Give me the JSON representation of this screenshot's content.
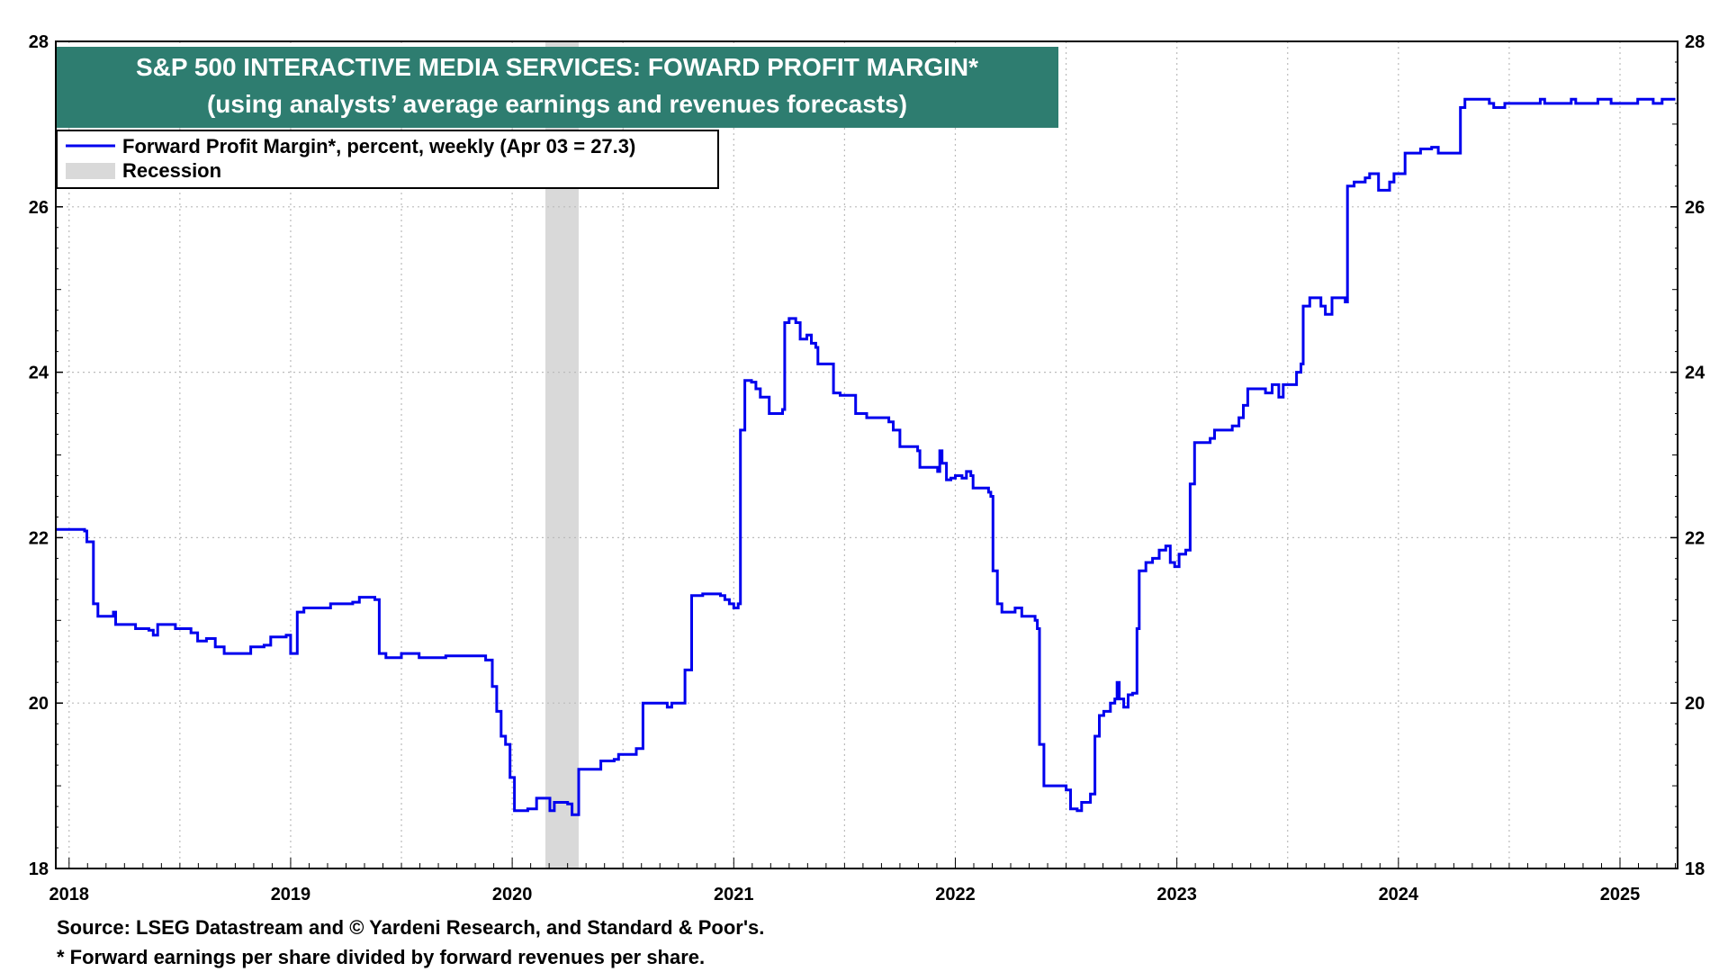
{
  "chart_data": {
    "type": "line",
    "title": "S&P 500 INTERACTIVE MEDIA SERVICES: FOWARD PROFIT MARGIN*",
    "subtitle": "(using analysts’ average earnings and revenues forecasts)",
    "ylim": [
      18,
      28
    ],
    "yticks": [
      18,
      20,
      22,
      24,
      26,
      28
    ],
    "y_tick_labels": [
      "18",
      "20",
      "22",
      "24",
      "26",
      "28"
    ],
    "xlim": [
      2017.94,
      2025.26
    ],
    "year_ticks": [
      2018,
      2019,
      2020,
      2021,
      2022,
      2023,
      2024,
      2025
    ],
    "x_tick_labels": [
      {
        "x": 2018.0,
        "label": "2018"
      },
      {
        "x": 2019.0,
        "label": "2019"
      },
      {
        "x": 2020.0,
        "label": "2020"
      },
      {
        "x": 2021.0,
        "label": "2021"
      },
      {
        "x": 2022.0,
        "label": "2022"
      },
      {
        "x": 2023.0,
        "label": "2023"
      },
      {
        "x": 2024.0,
        "label": "2024"
      },
      {
        "x": 2025.0,
        "label": "2025"
      }
    ],
    "grid": true,
    "legend_position": "top-left",
    "legend": [
      {
        "name": "Forward Profit Margin*, percent, weekly (Apr 03 = 27.3)",
        "color": "#0000ee",
        "kind": "line"
      },
      {
        "name": "Recession",
        "color": "#d9d9d9",
        "kind": "band"
      }
    ],
    "recession_bands": [
      [
        2020.15,
        2020.3
      ]
    ],
    "series": [
      {
        "name": "Forward Profit Margin",
        "color": "#0000ee",
        "points": [
          [
            2017.94,
            22.1
          ],
          [
            2018.03,
            22.1
          ],
          [
            2018.07,
            22.08
          ],
          [
            2018.08,
            21.95
          ],
          [
            2018.1,
            21.95
          ],
          [
            2018.11,
            21.2
          ],
          [
            2018.13,
            21.05
          ],
          [
            2018.18,
            21.05
          ],
          [
            2018.2,
            21.1
          ],
          [
            2018.21,
            20.95
          ],
          [
            2018.28,
            20.95
          ],
          [
            2018.3,
            20.9
          ],
          [
            2018.36,
            20.88
          ],
          [
            2018.38,
            20.82
          ],
          [
            2018.4,
            20.95
          ],
          [
            2018.48,
            20.9
          ],
          [
            2018.55,
            20.85
          ],
          [
            2018.58,
            20.75
          ],
          [
            2018.62,
            20.78
          ],
          [
            2018.66,
            20.68
          ],
          [
            2018.7,
            20.6
          ],
          [
            2018.8,
            20.6
          ],
          [
            2018.82,
            20.68
          ],
          [
            2018.88,
            20.7
          ],
          [
            2018.91,
            20.8
          ],
          [
            2018.98,
            20.82
          ],
          [
            2019.0,
            20.6
          ],
          [
            2019.02,
            20.6
          ],
          [
            2019.03,
            21.1
          ],
          [
            2019.06,
            21.15
          ],
          [
            2019.16,
            21.15
          ],
          [
            2019.18,
            21.2
          ],
          [
            2019.28,
            21.22
          ],
          [
            2019.31,
            21.28
          ],
          [
            2019.38,
            21.25
          ],
          [
            2019.4,
            20.6
          ],
          [
            2019.43,
            20.55
          ],
          [
            2019.47,
            20.55
          ],
          [
            2019.5,
            20.6
          ],
          [
            2019.55,
            20.6
          ],
          [
            2019.58,
            20.55
          ],
          [
            2019.66,
            20.55
          ],
          [
            2019.7,
            20.57
          ],
          [
            2019.85,
            20.57
          ],
          [
            2019.88,
            20.52
          ],
          [
            2019.91,
            20.2
          ],
          [
            2019.93,
            19.9
          ],
          [
            2019.95,
            19.6
          ],
          [
            2019.97,
            19.5
          ],
          [
            2019.99,
            19.1
          ],
          [
            2020.01,
            18.7
          ],
          [
            2020.07,
            18.72
          ],
          [
            2020.11,
            18.85
          ],
          [
            2020.16,
            18.85
          ],
          [
            2020.17,
            18.7
          ],
          [
            2020.19,
            18.8
          ],
          [
            2020.25,
            18.78
          ],
          [
            2020.27,
            18.65
          ],
          [
            2020.29,
            18.65
          ],
          [
            2020.3,
            19.2
          ],
          [
            2020.38,
            19.2
          ],
          [
            2020.4,
            19.3
          ],
          [
            2020.46,
            19.32
          ],
          [
            2020.48,
            19.38
          ],
          [
            2020.53,
            19.38
          ],
          [
            2020.56,
            19.45
          ],
          [
            2020.58,
            19.45
          ],
          [
            2020.59,
            20.0
          ],
          [
            2020.68,
            20.0
          ],
          [
            2020.7,
            19.95
          ],
          [
            2020.72,
            20.0
          ],
          [
            2020.76,
            20.0
          ],
          [
            2020.78,
            20.4
          ],
          [
            2020.8,
            20.4
          ],
          [
            2020.81,
            21.3
          ],
          [
            2020.86,
            21.32
          ],
          [
            2020.94,
            21.3
          ],
          [
            2020.96,
            21.25
          ],
          [
            2020.98,
            21.2
          ],
          [
            2021.0,
            21.15
          ],
          [
            2021.02,
            21.2
          ],
          [
            2021.03,
            23.3
          ],
          [
            2021.05,
            23.9
          ],
          [
            2021.08,
            23.88
          ],
          [
            2021.1,
            23.8
          ],
          [
            2021.12,
            23.7
          ],
          [
            2021.14,
            23.7
          ],
          [
            2021.16,
            23.5
          ],
          [
            2021.2,
            23.5
          ],
          [
            2021.22,
            23.55
          ],
          [
            2021.23,
            24.6
          ],
          [
            2021.25,
            24.65
          ],
          [
            2021.28,
            24.6
          ],
          [
            2021.3,
            24.4
          ],
          [
            2021.33,
            24.45
          ],
          [
            2021.35,
            24.35
          ],
          [
            2021.37,
            24.3
          ],
          [
            2021.38,
            24.1
          ],
          [
            2021.43,
            24.1
          ],
          [
            2021.45,
            23.75
          ],
          [
            2021.48,
            23.72
          ],
          [
            2021.53,
            23.72
          ],
          [
            2021.55,
            23.5
          ],
          [
            2021.58,
            23.5
          ],
          [
            2021.6,
            23.45
          ],
          [
            2021.66,
            23.45
          ],
          [
            2021.7,
            23.4
          ],
          [
            2021.72,
            23.3
          ],
          [
            2021.74,
            23.3
          ],
          [
            2021.75,
            23.1
          ],
          [
            2021.8,
            23.1
          ],
          [
            2021.83,
            23.05
          ],
          [
            2021.84,
            22.85
          ],
          [
            2021.9,
            22.85
          ],
          [
            2021.92,
            22.8
          ],
          [
            2021.93,
            23.05
          ],
          [
            2021.94,
            22.9
          ],
          [
            2021.96,
            22.7
          ],
          [
            2021.98,
            22.72
          ],
          [
            2022.0,
            22.75
          ],
          [
            2022.03,
            22.72
          ],
          [
            2022.05,
            22.8
          ],
          [
            2022.07,
            22.75
          ],
          [
            2022.08,
            22.6
          ],
          [
            2022.13,
            22.6
          ],
          [
            2022.15,
            22.55
          ],
          [
            2022.16,
            22.5
          ],
          [
            2022.17,
            21.6
          ],
          [
            2022.19,
            21.2
          ],
          [
            2022.21,
            21.1
          ],
          [
            2022.25,
            21.1
          ],
          [
            2022.27,
            21.15
          ],
          [
            2022.29,
            21.15
          ],
          [
            2022.3,
            21.05
          ],
          [
            2022.33,
            21.05
          ],
          [
            2022.36,
            21.0
          ],
          [
            2022.37,
            20.9
          ],
          [
            2022.38,
            19.5
          ],
          [
            2022.4,
            19.0
          ],
          [
            2022.47,
            19.0
          ],
          [
            2022.5,
            18.95
          ],
          [
            2022.52,
            18.72
          ],
          [
            2022.55,
            18.7
          ],
          [
            2022.57,
            18.8
          ],
          [
            2022.6,
            18.8
          ],
          [
            2022.61,
            18.9
          ],
          [
            2022.63,
            19.6
          ],
          [
            2022.65,
            19.85
          ],
          [
            2022.67,
            19.9
          ],
          [
            2022.69,
            19.9
          ],
          [
            2022.7,
            20.0
          ],
          [
            2022.72,
            20.05
          ],
          [
            2022.73,
            20.25
          ],
          [
            2022.74,
            20.05
          ],
          [
            2022.76,
            19.95
          ],
          [
            2022.78,
            20.1
          ],
          [
            2022.8,
            20.12
          ],
          [
            2022.82,
            20.9
          ],
          [
            2022.83,
            21.6
          ],
          [
            2022.86,
            21.7
          ],
          [
            2022.89,
            21.75
          ],
          [
            2022.92,
            21.85
          ],
          [
            2022.95,
            21.9
          ],
          [
            2022.97,
            21.7
          ],
          [
            2022.99,
            21.65
          ],
          [
            2023.01,
            21.8
          ],
          [
            2023.04,
            21.85
          ],
          [
            2023.06,
            22.65
          ],
          [
            2023.08,
            23.15
          ],
          [
            2023.12,
            23.15
          ],
          [
            2023.15,
            23.2
          ],
          [
            2023.17,
            23.3
          ],
          [
            2023.22,
            23.3
          ],
          [
            2023.25,
            23.35
          ],
          [
            2023.28,
            23.45
          ],
          [
            2023.3,
            23.6
          ],
          [
            2023.32,
            23.8
          ],
          [
            2023.36,
            23.8
          ],
          [
            2023.4,
            23.75
          ],
          [
            2023.43,
            23.85
          ],
          [
            2023.46,
            23.7
          ],
          [
            2023.48,
            23.85
          ],
          [
            2023.52,
            23.85
          ],
          [
            2023.54,
            24.0
          ],
          [
            2023.56,
            24.1
          ],
          [
            2023.57,
            24.8
          ],
          [
            2023.6,
            24.9
          ],
          [
            2023.62,
            24.9
          ],
          [
            2023.65,
            24.8
          ],
          [
            2023.67,
            24.7
          ],
          [
            2023.7,
            24.9
          ],
          [
            2023.74,
            24.9
          ],
          [
            2023.76,
            24.85
          ],
          [
            2023.77,
            26.25
          ],
          [
            2023.8,
            26.3
          ],
          [
            2023.85,
            26.35
          ],
          [
            2023.87,
            26.4
          ],
          [
            2023.91,
            26.2
          ],
          [
            2023.96,
            26.3
          ],
          [
            2023.98,
            26.4
          ],
          [
            2024.03,
            26.65
          ],
          [
            2024.08,
            26.65
          ],
          [
            2024.1,
            26.7
          ],
          [
            2024.15,
            26.72
          ],
          [
            2024.18,
            26.65
          ],
          [
            2024.26,
            26.65
          ],
          [
            2024.28,
            27.2
          ],
          [
            2024.3,
            27.3
          ],
          [
            2024.36,
            27.3
          ],
          [
            2024.41,
            27.25
          ],
          [
            2024.43,
            27.2
          ],
          [
            2024.47,
            27.2
          ],
          [
            2024.48,
            27.25
          ],
          [
            2024.54,
            27.25
          ],
          [
            2024.62,
            27.25
          ],
          [
            2024.64,
            27.3
          ],
          [
            2024.66,
            27.25
          ],
          [
            2024.76,
            27.25
          ],
          [
            2024.78,
            27.3
          ],
          [
            2024.8,
            27.25
          ],
          [
            2024.85,
            27.25
          ],
          [
            2024.9,
            27.3
          ],
          [
            2024.96,
            27.25
          ],
          [
            2025.05,
            27.25
          ],
          [
            2025.08,
            27.3
          ],
          [
            2025.15,
            27.25
          ],
          [
            2025.19,
            27.3
          ],
          [
            2025.25,
            27.3
          ]
        ]
      }
    ],
    "footnotes": {
      "source": "Source: LSEG Datastream and © Yardeni Research, and Standard & Poor's.",
      "note": "* Forward earnings per share divided by forward revenues per share."
    },
    "colors": {
      "title_bg": "#2e7d70",
      "line": "#0000ee",
      "recession": "#d9d9d9",
      "grid": "#bbbbbb"
    }
  }
}
